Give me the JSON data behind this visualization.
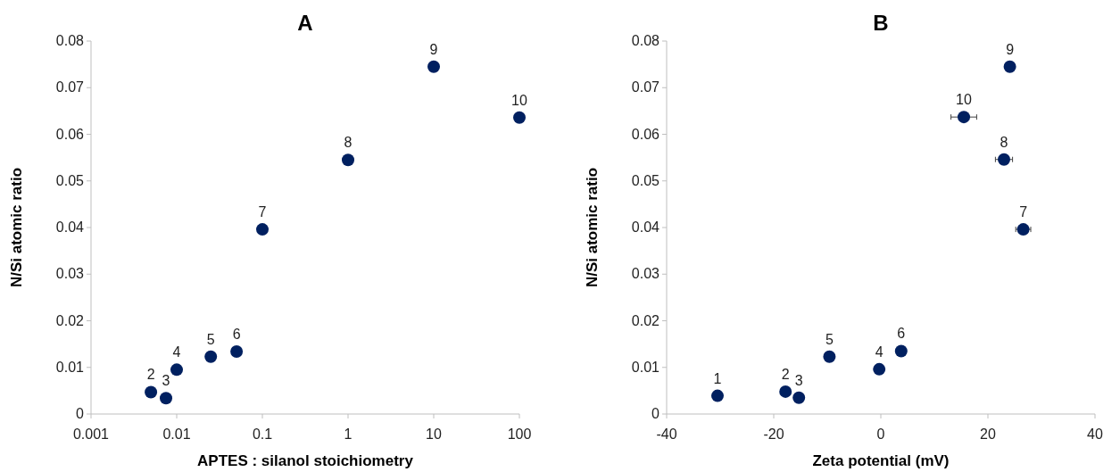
{
  "chart_data": [
    {
      "type": "scatter",
      "title": "A",
      "xlabel": "APTES : silanol stoichiometry",
      "ylabel": "N/Si atomic ratio",
      "log": "x",
      "xlim": [
        0.001,
        100
      ],
      "xticks": [
        0.001,
        0.01,
        0.1,
        1,
        10,
        100
      ],
      "ylim": [
        0,
        0.08
      ],
      "yticks": [
        0,
        0.01,
        0.02,
        0.03,
        0.04,
        0.05,
        0.06,
        0.07,
        0.08
      ],
      "grid": false,
      "marker": "circle",
      "series": [
        {
          "color": "#002060",
          "x": [
            0.005,
            0.0075,
            0.01,
            0.025,
            0.05,
            0.1,
            1,
            10,
            100
          ],
          "values": [
            0.0047,
            0.0034,
            0.0095,
            0.0123,
            0.0134,
            0.0396,
            0.0545,
            0.0745,
            0.0636
          ]
        }
      ],
      "annotations": [
        {
          "text": "2",
          "x": 0.005,
          "y": 0.0047
        },
        {
          "text": "3",
          "x": 0.0075,
          "y": 0.0034
        },
        {
          "text": "4",
          "x": 0.01,
          "y": 0.0095
        },
        {
          "text": "5",
          "x": 0.025,
          "y": 0.0123
        },
        {
          "text": "6",
          "x": 0.05,
          "y": 0.0134
        },
        {
          "text": "7",
          "x": 0.1,
          "y": 0.0396
        },
        {
          "text": "8",
          "x": 1,
          "y": 0.0545
        },
        {
          "text": "9",
          "x": 10,
          "y": 0.0745
        },
        {
          "text": "10",
          "x": 100,
          "y": 0.0636
        }
      ]
    },
    {
      "type": "scatter",
      "title": "B",
      "xlabel": "Zeta potential (mV)",
      "ylabel": "N/Si atomic ratio",
      "xlim": [
        -40,
        40
      ],
      "xticks": [
        -40,
        -20,
        0,
        20,
        40
      ],
      "ylim": [
        0,
        0.08
      ],
      "yticks": [
        0,
        0.01,
        0.02,
        0.03,
        0.04,
        0.05,
        0.06,
        0.07,
        0.08
      ],
      "grid": false,
      "marker": "circle",
      "series": [
        {
          "color": "#002060",
          "x": [
            -30.5,
            -17.8,
            -15.3,
            -0.3,
            -9.6,
            3.8,
            26.6,
            23.0,
            24.1,
            15.5
          ],
          "values": [
            0.0039,
            0.0048,
            0.0035,
            0.0096,
            0.0123,
            0.0135,
            0.0396,
            0.0546,
            0.0745,
            0.0637
          ],
          "xerrors": [
            null,
            null,
            null,
            null,
            null,
            null,
            1.4,
            1.6,
            null,
            2.4
          ]
        }
      ],
      "annotations": [
        {
          "text": "1",
          "x": -30.5,
          "y": 0.0039
        },
        {
          "text": "2",
          "x": -17.8,
          "y": 0.0048
        },
        {
          "text": "3",
          "x": -15.3,
          "y": 0.0035
        },
        {
          "text": "4",
          "x": -0.3,
          "y": 0.0096
        },
        {
          "text": "5",
          "x": -9.6,
          "y": 0.0123
        },
        {
          "text": "6",
          "x": 3.8,
          "y": 0.0135
        },
        {
          "text": "7",
          "x": 26.6,
          "y": 0.0396
        },
        {
          "text": "8",
          "x": 23.0,
          "y": 0.0546
        },
        {
          "text": "9",
          "x": 24.1,
          "y": 0.0745
        },
        {
          "text": "10",
          "x": 15.5,
          "y": 0.0637
        }
      ]
    }
  ]
}
